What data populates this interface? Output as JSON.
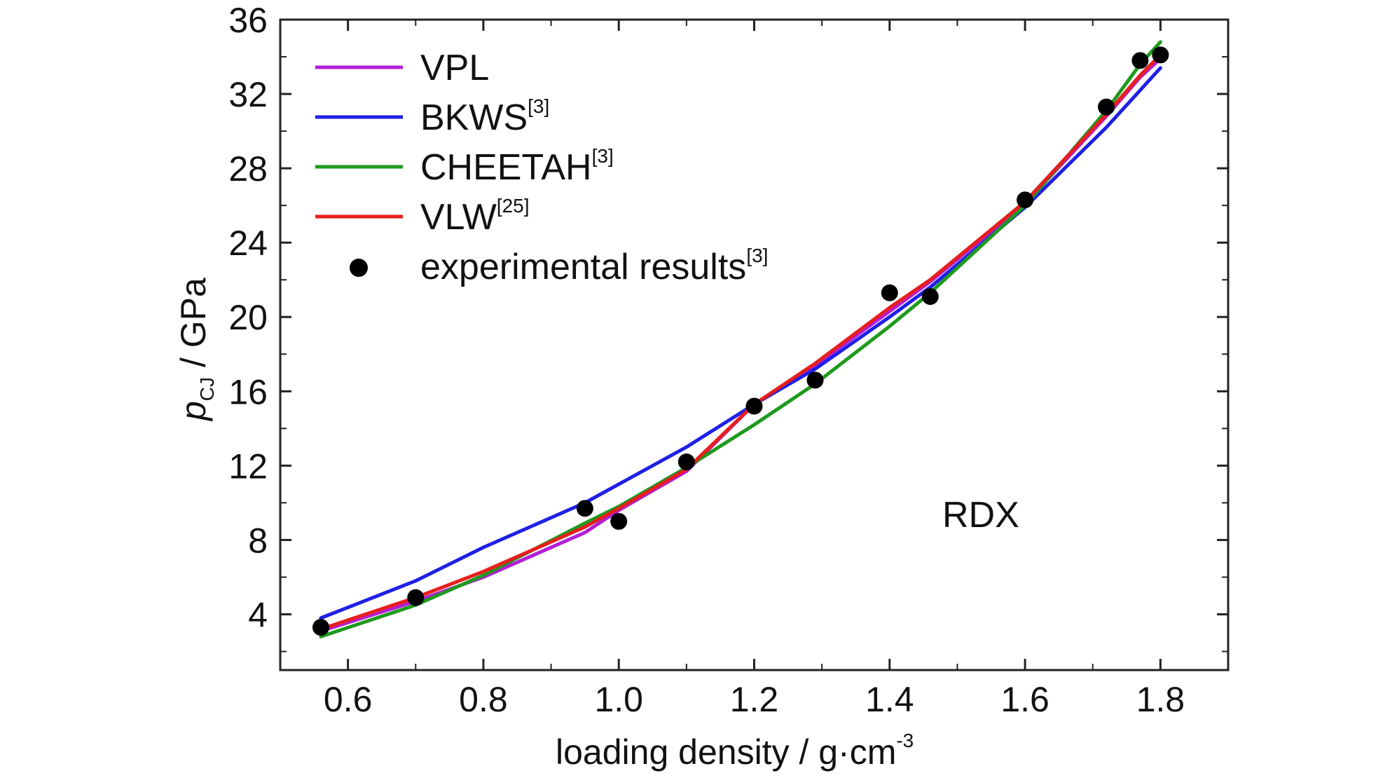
{
  "chart_data": {
    "type": "line",
    "xlabel": "loading density / g·cm",
    "xlabel_sup": "-3",
    "ylabel_main": "p",
    "ylabel_sub": "CJ",
    "ylabel_rest": " / GPa",
    "annotation": "RDX",
    "xlim": [
      0.5,
      1.9
    ],
    "ylim": [
      1,
      36
    ],
    "xticks": [
      0.6,
      0.8,
      1.0,
      1.2,
      1.4,
      1.6,
      1.8
    ],
    "xtick_labels": [
      "0.6",
      "0.8",
      "1.0",
      "1.2",
      "1.4",
      "1.6",
      "1.8"
    ],
    "yticks": [
      4,
      8,
      12,
      16,
      20,
      24,
      28,
      32,
      36
    ],
    "ytick_labels": [
      "4",
      "8",
      "12",
      "16",
      "20",
      "24",
      "28",
      "32",
      "36"
    ],
    "legend_position": "top-left",
    "series": [
      {
        "name": "VPL",
        "ref": "",
        "color": "#b21fd6",
        "kind": "line",
        "x": [
          0.56,
          0.7,
          0.8,
          0.95,
          1.0,
          1.1,
          1.2,
          1.29,
          1.4,
          1.46,
          1.6,
          1.72,
          1.77,
          1.8
        ],
        "y": [
          3.1,
          4.7,
          6.0,
          8.4,
          9.6,
          11.7,
          15.3,
          17.4,
          20.3,
          21.9,
          26.1,
          30.8,
          32.9,
          33.9
        ]
      },
      {
        "name": "BKWS",
        "ref": "[3]",
        "color": "#1f1fe6",
        "kind": "line",
        "x": [
          0.56,
          0.7,
          0.8,
          0.95,
          1.0,
          1.1,
          1.2,
          1.29,
          1.4,
          1.46,
          1.6,
          1.72,
          1.77,
          1.8
        ],
        "y": [
          3.8,
          5.8,
          7.6,
          10.0,
          11.0,
          13.0,
          15.3,
          17.2,
          20.0,
          21.6,
          25.9,
          30.2,
          32.2,
          33.4
        ]
      },
      {
        "name": "CHEETAH",
        "ref": "[3]",
        "color": "#1e9a1e",
        "kind": "line",
        "x": [
          0.56,
          0.7,
          0.8,
          0.95,
          1.0,
          1.1,
          1.2,
          1.29,
          1.4,
          1.46,
          1.6,
          1.72,
          1.77,
          1.8
        ],
        "y": [
          2.8,
          4.5,
          6.1,
          8.9,
          9.8,
          11.9,
          14.2,
          16.4,
          19.5,
          21.3,
          26.0,
          31.1,
          33.6,
          34.8
        ]
      },
      {
        "name": "VLW",
        "ref": "[25]",
        "color": "#e61e1e",
        "kind": "line",
        "x": [
          0.56,
          0.7,
          0.8,
          0.95,
          1.0,
          1.1,
          1.2,
          1.29,
          1.4,
          1.46,
          1.6,
          1.72,
          1.77,
          1.8
        ],
        "y": [
          3.2,
          4.9,
          6.3,
          8.7,
          9.7,
          11.8,
          15.3,
          17.5,
          20.5,
          22.0,
          26.2,
          30.9,
          33.0,
          34.1
        ]
      },
      {
        "name": "experimental results",
        "ref": "[3]",
        "color": "#000000",
        "kind": "scatter",
        "x": [
          0.56,
          0.7,
          0.95,
          1.0,
          1.1,
          1.2,
          1.29,
          1.4,
          1.46,
          1.6,
          1.72,
          1.77,
          1.8
        ],
        "y": [
          3.3,
          4.9,
          9.7,
          9.0,
          12.2,
          15.2,
          16.6,
          21.3,
          21.1,
          26.3,
          31.3,
          33.8,
          34.1
        ]
      }
    ]
  }
}
